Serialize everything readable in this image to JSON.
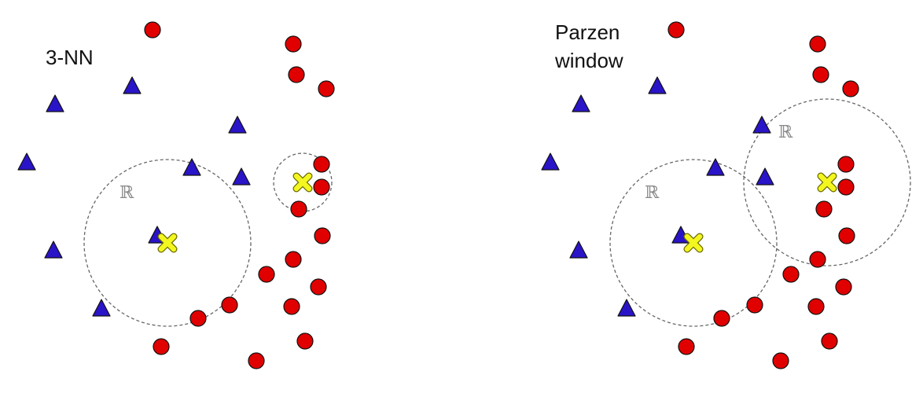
{
  "panels": [
    {
      "id": "knn",
      "title_lines": [
        "3-NN"
      ],
      "region_symbol": "ℝ",
      "colors": {
        "class_a": "#e00000",
        "class_b": "#2a14c8",
        "query": "#f4f71f",
        "outline": "#111111",
        "region": "#666666"
      }
    },
    {
      "id": "parzen",
      "title_lines": [
        "Parzen",
        "window"
      ],
      "region_symbol": "ℝ",
      "colors": {
        "class_a": "#e00000",
        "class_b": "#2a14c8",
        "query": "#f4f71f",
        "outline": "#111111",
        "region": "#666666"
      }
    }
  ],
  "legend": {
    "class_a_shape": "red-circle",
    "class_b_shape": "blue-triangle",
    "query_shape": "yellow-x"
  }
}
